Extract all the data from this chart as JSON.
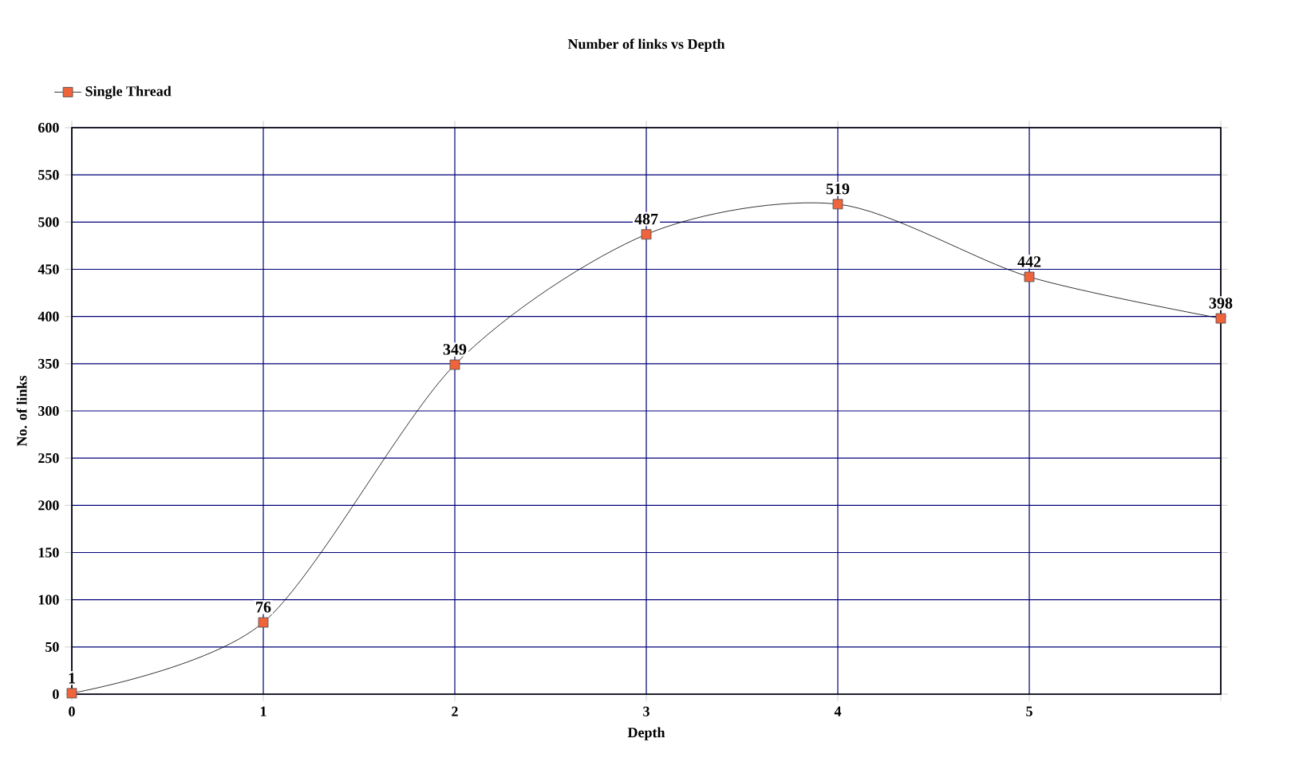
{
  "chart_data": {
    "type": "line",
    "title": "Number of links vs Depth",
    "xlabel": "Depth",
    "ylabel": "No. of links",
    "x": [
      0,
      1,
      2,
      3,
      4,
      5,
      6
    ],
    "series": [
      {
        "name": "Single Thread",
        "color": "#f0643c",
        "values": [
          1,
          76,
          349,
          487,
          519,
          442,
          398
        ]
      }
    ],
    "xlim": [
      0,
      6
    ],
    "xticks": [
      0,
      1,
      2,
      3,
      4,
      5,
      {
        "value": 6,
        "label": null
      }
    ],
    "ylim": [
      0,
      600
    ],
    "yticks": [
      0,
      50,
      100,
      150,
      200,
      250,
      300,
      350,
      400,
      450,
      500,
      550,
      600
    ],
    "grid": true,
    "legend": "top left",
    "marker": "square",
    "line_style": "solid",
    "data_labels": true
  }
}
